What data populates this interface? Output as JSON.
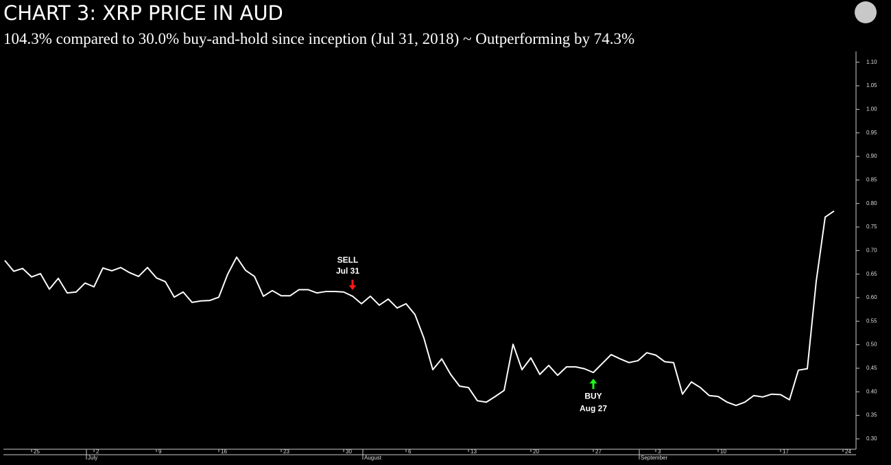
{
  "chart_data": {
    "type": "line",
    "title": "CHART 3: XRP PRICE IN AUD",
    "subtitle": "104.3% compared to 30.0% buy-and-hold since inception (Jul 31, 2018) ~ Outperforming by 74.3%",
    "categories": [
      null,
      null,
      null,
      "25",
      null,
      null,
      null,
      null,
      null,
      null,
      "2",
      null,
      null,
      null,
      null,
      null,
      null,
      "9",
      null,
      null,
      null,
      null,
      null,
      null,
      "16",
      null,
      null,
      null,
      null,
      null,
      null,
      "23",
      null,
      null,
      null,
      null,
      null,
      null,
      "30",
      null,
      null,
      null,
      null,
      null,
      null,
      "6",
      null,
      null,
      null,
      null,
      null,
      null,
      "13",
      null,
      null,
      null,
      null,
      null,
      null,
      "20",
      null,
      null,
      null,
      null,
      null,
      null,
      "27",
      null,
      null,
      null,
      null,
      null,
      null,
      "3",
      null,
      null,
      null,
      null,
      null,
      null,
      "10",
      null,
      null,
      null,
      null,
      null,
      null,
      "17",
      null,
      null,
      null,
      null,
      null,
      null,
      "24"
    ],
    "months": [
      null,
      null,
      null,
      null,
      null,
      null,
      null,
      null,
      null,
      "July",
      null,
      null,
      null,
      null,
      null,
      null,
      null,
      null,
      null,
      null,
      null,
      null,
      null,
      null,
      null,
      null,
      null,
      null,
      null,
      null,
      null,
      null,
      null,
      null,
      null,
      null,
      null,
      null,
      null,
      null,
      "August",
      null,
      null,
      null,
      null,
      null,
      null,
      null,
      null,
      null,
      null,
      null,
      null,
      null,
      null,
      null,
      null,
      null,
      null,
      null,
      null,
      null,
      null,
      null,
      null,
      null,
      null,
      null,
      null,
      null,
      null,
      "September",
      null,
      null,
      null,
      null,
      null,
      null,
      null,
      null,
      null,
      null,
      null,
      null,
      null,
      null,
      null,
      null,
      null,
      null,
      null,
      null,
      null,
      null,
      null
    ],
    "series": [
      {
        "color": "#ffffff",
        "values": [
          0.679,
          0.656,
          0.662,
          0.644,
          0.651,
          0.618,
          0.641,
          0.61,
          0.612,
          0.631,
          0.623,
          0.663,
          0.657,
          0.664,
          0.653,
          0.645,
          0.664,
          0.642,
          0.634,
          0.601,
          0.612,
          0.59,
          0.593,
          0.594,
          0.601,
          0.65,
          0.686,
          0.658,
          0.645,
          0.603,
          0.615,
          0.604,
          0.604,
          0.617,
          0.617,
          0.61,
          0.613,
          0.613,
          0.612,
          0.603,
          0.587,
          0.603,
          0.584,
          0.597,
          0.578,
          0.587,
          0.564,
          0.514,
          0.447,
          0.47,
          0.437,
          0.412,
          0.409,
          0.381,
          0.378,
          0.39,
          0.403,
          0.501,
          0.447,
          0.472,
          0.437,
          0.456,
          0.435,
          0.453,
          0.453,
          0.449,
          0.441,
          0.46,
          0.479,
          0.47,
          0.462,
          0.466,
          0.483,
          0.478,
          0.464,
          0.462,
          0.395,
          0.421,
          0.409,
          0.392,
          0.39,
          0.378,
          0.371,
          0.378,
          0.392,
          0.389,
          0.395,
          0.394,
          0.383,
          0.446,
          0.449,
          0.635,
          0.771,
          0.784,
          null
        ]
      }
    ],
    "ylim": [
      0.278,
      1.123
    ],
    "yticks": [
      {
        "value": 0.3,
        "label": "0.30"
      },
      0.35,
      {
        "value": 0.4,
        "label": "0.40"
      },
      0.45,
      {
        "value": 0.5,
        "label": "0.50"
      },
      0.55,
      {
        "value": 0.6,
        "label": "0.60"
      },
      0.65,
      {
        "value": 0.7,
        "label": "0.70"
      },
      0.75,
      {
        "value": 0.8,
        "label": "0.80"
      },
      0.85,
      {
        "value": 0.9,
        "label": "0.90"
      },
      0.95,
      {
        "value": 1.0,
        "label": "1.00"
      },
      1.05,
      {
        "value": 1.1,
        "label": "1.10"
      }
    ],
    "annotations": [
      {
        "lines": [
          "SELL",
          "Jul 31"
        ],
        "color": "#ff1a1a"
      },
      {
        "lines": [
          "BUY",
          "Aug 27"
        ],
        "color": "#1aff1a"
      }
    ]
  }
}
